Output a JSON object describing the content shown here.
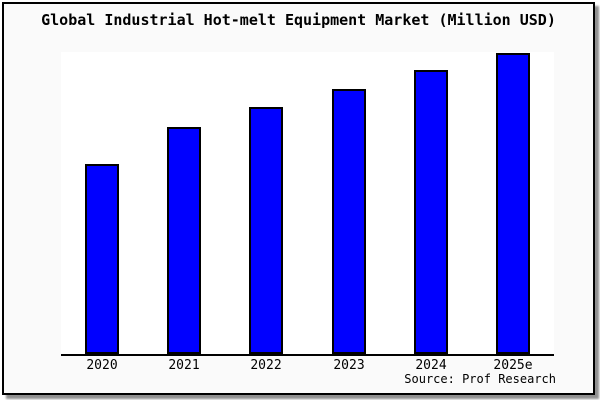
{
  "chart_data": {
    "type": "bar",
    "title": "Global Industrial Hot-melt Equipment Market (Million USD)",
    "categories": [
      "2020",
      "2021",
      "2022",
      "2023",
      "2024",
      "2025e"
    ],
    "values": [
      190,
      227,
      247,
      265,
      284,
      301
    ],
    "values_unit": "relative (no y-axis scale shown in chart)",
    "xlabel": "",
    "ylabel": "",
    "y_axis_visible": false,
    "grid": false,
    "legend": false,
    "bar_color": "#0000ff",
    "bar_border_color": "#000000",
    "source_label": "Source: Prof Research"
  },
  "colors": {
    "frame_background": "#fafafa",
    "plot_background": "#ffffff",
    "frame_border": "#000000",
    "shadow": "#8f8f8f",
    "text": "#000000"
  }
}
